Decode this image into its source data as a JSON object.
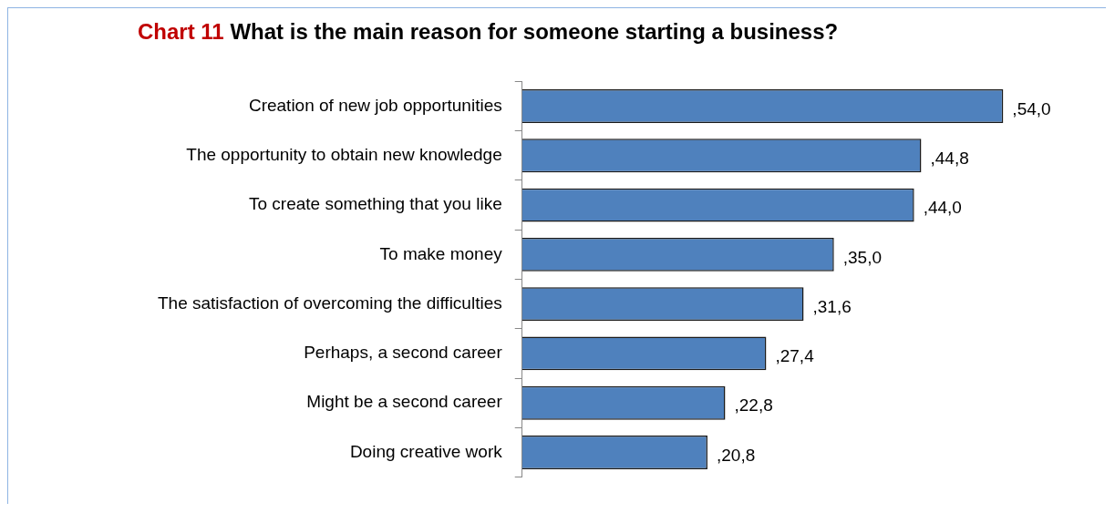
{
  "chart_data": {
    "type": "bar",
    "orientation": "horizontal",
    "title": "Chart 11 What is the main reason for someone starting a business?",
    "categories": [
      "Creation of new job opportunities",
      "The opportunity to obtain new knowledge",
      "To create something that you like",
      "To make money",
      "The satisfaction of overcoming the difficulties",
      "Perhaps, a second career",
      "Might be a second career",
      "Doing creative work"
    ],
    "values": [
      54.0,
      44.8,
      44.0,
      35.0,
      31.6,
      27.4,
      22.8,
      20.8
    ],
    "value_labels": [
      ",54,0",
      ",44,8",
      ",44,0",
      ",35,0",
      ",31,6",
      ",27,4",
      ",22,8",
      ",20,8"
    ],
    "color": "#4f81bd",
    "grid": false,
    "legend": false
  }
}
